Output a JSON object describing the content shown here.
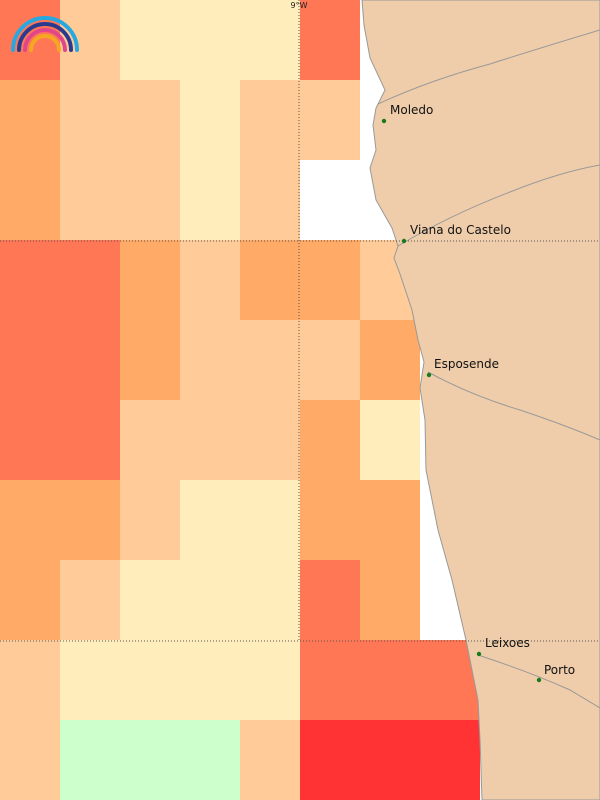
{
  "map": {
    "lon_label": "9°W",
    "palette": {
      "c0": "#ccffcc",
      "c1": "#ffeebb",
      "c2": "#ffcc99",
      "c3": "#ffaa66",
      "c4": "#ff7755",
      "c5": "#ff3333"
    },
    "land_color": "#efcdaa",
    "coast_color": "#999999",
    "cities": [
      {
        "name": "Moledo"
      },
      {
        "name": "Viana do Castelo"
      },
      {
        "name": "Esposende"
      },
      {
        "name": "Leixoes"
      },
      {
        "name": "Porto"
      }
    ],
    "logo": "rainbow-logo-icon"
  }
}
